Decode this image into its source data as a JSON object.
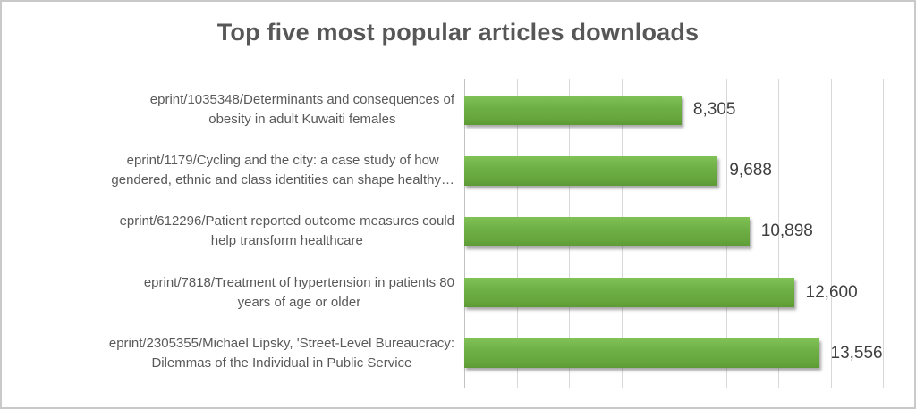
{
  "window": {
    "background": "#ffffff",
    "border_color": "#c9c9c9"
  },
  "chart_data": {
    "type": "bar",
    "orientation": "horizontal",
    "title": "Top five most popular articles downloads",
    "categories": [
      "eprint/1035348/Determinants and consequences of obesity in adult Kuwaiti females",
      "eprint/1179/Cycling and the city: a case study of how gendered, ethnic and class identities can shape healthy…",
      "eprint/612296/Patient reported outcome measures could help transform healthcare",
      "eprint/7818/Treatment of hypertension in patients 80 years of age or older",
      "eprint/2305355/Michael Lipsky, 'Street-Level Bureaucracy: Dilemmas of the Individual in Public Service"
    ],
    "category_lines": [
      [
        "eprint/1035348/Determinants and consequences of",
        "obesity in adult Kuwaiti females"
      ],
      [
        "eprint/1179/Cycling and the city: a case study of how",
        "gendered, ethnic and class identities can shape healthy…"
      ],
      [
        "eprint/612296/Patient reported outcome measures could",
        "help transform healthcare"
      ],
      [
        "eprint/7818/Treatment of hypertension in patients 80",
        "years of age or older"
      ],
      [
        "eprint/2305355/Michael Lipsky, 'Street-Level Bureaucracy:",
        "Dilemmas of the Individual in Public Service"
      ]
    ],
    "values": [
      8305,
      9688,
      10898,
      12600,
      13556
    ],
    "value_labels": [
      "8,305",
      "9,688",
      "10,898",
      "12,600",
      "13,556"
    ],
    "xlim": [
      0,
      16000
    ],
    "xtick_interval": 2000,
    "gridlines": "vertical",
    "axis_tick_labels_visible": false,
    "legend": "none",
    "colors": {
      "bar": "#6BAC43",
      "bar_gradient_top": "#81C257",
      "bar_gradient_bottom": "#5D9A35",
      "gridline": "#D8D8D8",
      "axis_line": "#C2C2C2",
      "title_text": "#575757",
      "category_text": "#595959",
      "value_text": "#3F3F3F"
    }
  }
}
